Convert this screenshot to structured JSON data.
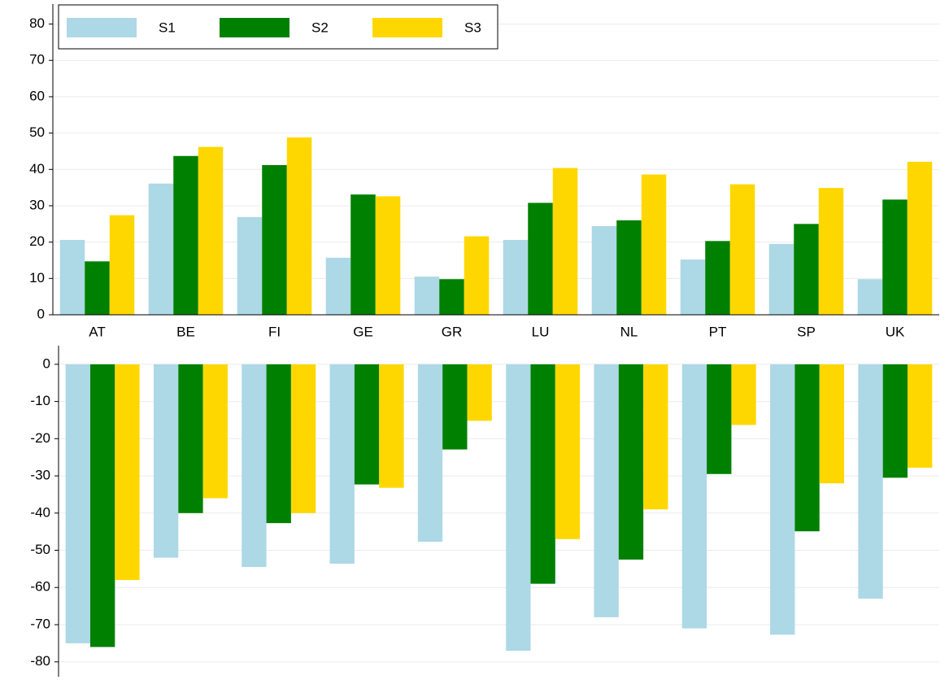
{
  "chart_data": [
    {
      "type": "bar",
      "categories": [
        "AT",
        "BE",
        "FI",
        "GE",
        "GR",
        "LU",
        "NL",
        "PT",
        "SP",
        "UK"
      ],
      "series": [
        {
          "name": "S1",
          "color": "#add8e6",
          "values": [
            20.6,
            36.1,
            26.9,
            15.7,
            10.5,
            20.6,
            24.4,
            15.2,
            19.5,
            9.8
          ]
        },
        {
          "name": "S2",
          "color": "#008000",
          "values": [
            14.7,
            43.7,
            41.2,
            33.1,
            9.8,
            30.8,
            26.0,
            20.3,
            25.0,
            31.7
          ]
        },
        {
          "name": "S3",
          "color": "#ffd700",
          "values": [
            27.4,
            46.2,
            48.8,
            32.6,
            21.6,
            40.4,
            38.6,
            35.9,
            34.9,
            42.1
          ]
        }
      ],
      "ylim": [
        0,
        85.5
      ],
      "yticks": [
        0,
        10,
        20,
        30,
        40,
        50,
        60,
        70,
        80
      ],
      "grid": true,
      "legend": "upper left"
    },
    {
      "type": "bar",
      "series": [
        {
          "color": "#add8e6",
          "values": [
            -75,
            -52,
            -54.5,
            -53.6,
            -47.7,
            -77,
            -68,
            -71,
            -72.7,
            -63
          ]
        },
        {
          "color": "#008000",
          "values": [
            -76,
            -40,
            -42.7,
            -32.3,
            -22.9,
            -59,
            -52.5,
            -29.5,
            -44.9,
            -30.5
          ]
        },
        {
          "color": "#ffd700",
          "values": [
            -58,
            -36,
            -40,
            -33.2,
            -15.2,
            -47,
            -39,
            -16.3,
            -32,
            -27.8
          ]
        }
      ],
      "ylim": [
        -84,
        5
      ],
      "yticks": [
        -80,
        -70,
        -60,
        -50,
        -40,
        -30,
        -20,
        -10,
        0
      ],
      "grid": true
    }
  ]
}
